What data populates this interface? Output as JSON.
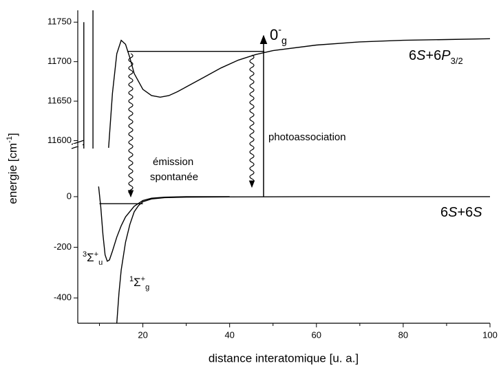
{
  "chart_data": {
    "type": "line",
    "xlabel": "distance interatomique [u. a.]",
    "ylabel": [
      {
        "t": "energie [cm"
      },
      {
        "t": "-1",
        "s": "sup"
      },
      {
        "t": "]"
      }
    ],
    "xlim": [
      5,
      100
    ],
    "xticks": [
      20,
      40,
      60,
      80,
      100
    ],
    "xminorticks": [
      10,
      30,
      50,
      70,
      90
    ],
    "panels": [
      {
        "ylim": [
          11590,
          11765
        ],
        "yticks": [
          11600,
          11650,
          11700,
          11750
        ],
        "series": [
          {
            "color": "#000000",
            "x": [
              12.1,
              13,
              14,
              15,
              16,
              17,
              18,
              20,
              22,
              24,
              26,
              28,
              30,
              34,
              38,
              42,
              46,
              50,
              60,
              70,
              80,
              90,
              100
            ],
            "values": [
              11591,
              11660,
              11710,
              11727,
              11722,
              11705,
              11685,
              11665,
              11657,
              11655,
              11657,
              11662,
              11668,
              11680,
              11692,
              11702,
              11709,
              11714,
              11721,
              11725,
              11727,
              11728,
              11729
            ]
          },
          {
            "color": "#000000",
            "x": [
              6.4,
              6.4
            ],
            "values": [
              11590,
              11750
            ]
          },
          {
            "color": "#000000",
            "x": [
              8.5,
              8.5
            ],
            "values": [
              11590,
              11765
            ]
          },
          {
            "color": "#000000",
            "x": [
              16.4,
              48
            ],
            "values": [
              11713,
              11713
            ]
          }
        ]
      },
      {
        "ylim": [
          -500,
          190
        ],
        "yticks": [
          0,
          -200,
          -400
        ],
        "series": [
          {
            "color": "#000000",
            "x": [
              9.8,
              10.3,
              10.8,
              11.3,
              11.8,
              12.3,
              13,
              14,
              15,
              16,
              18,
              20,
              22,
              25,
              30,
              40
            ],
            "values": [
              40,
              -40,
              -150,
              -230,
              -255,
              -250,
              -215,
              -160,
              -115,
              -80,
              -38,
              -15,
              -6,
              -2,
              0,
              0
            ]
          },
          {
            "color": "#000000",
            "x": [
              14,
              14.5,
              15,
              16,
              17,
              18,
              19,
              20,
              22,
              25,
              30,
              40,
              60,
              80,
              100
            ],
            "values": [
              -500,
              -380,
              -290,
              -180,
              -110,
              -60,
              -35,
              -20,
              -9,
              -4,
              -2,
              -1,
              0,
              0,
              0
            ]
          },
          {
            "color": "#000000",
            "x": [
              10,
              20
            ],
            "values": [
              -28,
              -28
            ]
          }
        ]
      }
    ],
    "annotations": [
      {
        "x": 392,
        "y": 52,
        "size": 22,
        "parts": [
          {
            "t": "0"
          },
          {
            "t": "-",
            "s": "sup"
          },
          {
            "t": "g",
            "s": "sub"
          }
        ]
      },
      {
        "x": 594,
        "y": 82,
        "size": 20,
        "parts": [
          {
            "t": "6"
          },
          {
            "t": "S",
            "s": "i"
          },
          {
            "t": "+6"
          },
          {
            "t": "P",
            "s": "i"
          },
          {
            "t": "3/2",
            "s": "sub"
          }
        ]
      },
      {
        "x": 640,
        "y": 310,
        "size": 20,
        "parts": [
          {
            "t": "6"
          },
          {
            "t": "S",
            "s": "i"
          },
          {
            "t": "+6"
          },
          {
            "t": "S",
            "s": "i"
          }
        ]
      },
      {
        "x": 390,
        "y": 200,
        "size": 15,
        "parts": [
          {
            "t": "photoassociation"
          }
        ]
      },
      {
        "x": 222,
        "y": 236,
        "size": 15,
        "parts": [
          {
            "t": "émission"
          }
        ]
      },
      {
        "x": 218,
        "y": 258,
        "size": 15,
        "parts": [
          {
            "t": "spontanée"
          }
        ]
      },
      {
        "x": 120,
        "y": 376,
        "size": 17,
        "parts": [
          {
            "t": "3",
            "s": "sup"
          },
          {
            "t": "Σ"
          },
          {
            "t": "+",
            "s": "sup"
          },
          {
            "t": "u",
            "s": "sub"
          }
        ]
      },
      {
        "x": 188,
        "y": 412,
        "size": 17,
        "parts": [
          {
            "t": "1",
            "s": "sup"
          },
          {
            "t": "Σ"
          },
          {
            "t": "+",
            "s": "sup"
          },
          {
            "t": "g",
            "s": "sub"
          }
        ]
      }
    ]
  }
}
